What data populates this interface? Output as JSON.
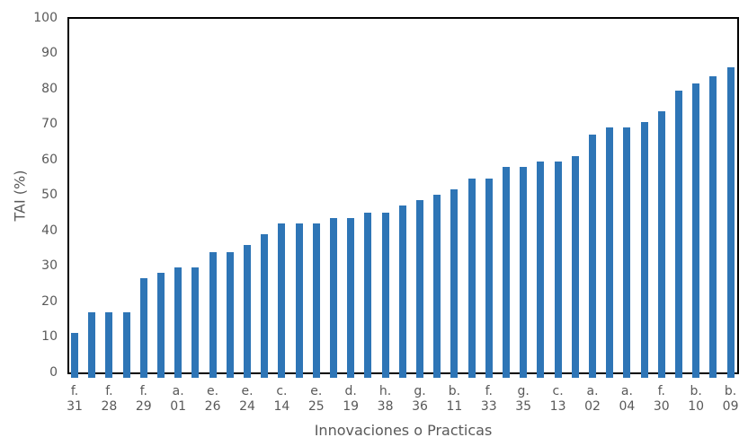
{
  "chart_data": {
    "type": "bar",
    "title": "",
    "xlabel": "Innovaciones o Practicas",
    "ylabel": "TAI (%)",
    "ylim": [
      0,
      100
    ],
    "ytick_step": 10,
    "yticks": [
      0,
      10,
      20,
      30,
      40,
      50,
      60,
      70,
      80,
      90,
      100
    ],
    "grid": false,
    "legend": false,
    "x_labels_every": 2,
    "bar_color": "#2E75B6",
    "axis_color": "#000000",
    "text_color": "#595959",
    "background": "#FFFFFF",
    "bars": [
      {
        "label": "f. 31",
        "value": 11
      },
      {
        "label": "",
        "value": 17
      },
      {
        "label": "f. 28",
        "value": 17
      },
      {
        "label": "",
        "value": 17
      },
      {
        "label": "f. 29",
        "value": 26.5
      },
      {
        "label": "",
        "value": 28
      },
      {
        "label": "a. 01",
        "value": 29.5
      },
      {
        "label": "",
        "value": 29.5
      },
      {
        "label": "e. 26",
        "value": 34
      },
      {
        "label": "",
        "value": 34
      },
      {
        "label": "e. 24",
        "value": 36
      },
      {
        "label": "",
        "value": 39
      },
      {
        "label": "c. 14",
        "value": 42
      },
      {
        "label": "",
        "value": 42
      },
      {
        "label": "e. 25",
        "value": 42
      },
      {
        "label": "",
        "value": 43.5
      },
      {
        "label": "d. 19",
        "value": 43.5
      },
      {
        "label": "",
        "value": 45
      },
      {
        "label": "h. 38",
        "value": 45
      },
      {
        "label": "",
        "value": 47
      },
      {
        "label": "g. 36",
        "value": 48.5
      },
      {
        "label": "",
        "value": 50
      },
      {
        "label": "b. 11",
        "value": 51.5
      },
      {
        "label": "",
        "value": 54.5
      },
      {
        "label": "f. 33",
        "value": 54.5
      },
      {
        "label": "",
        "value": 58
      },
      {
        "label": "g. 35",
        "value": 58
      },
      {
        "label": "",
        "value": 59.5
      },
      {
        "label": "c. 13",
        "value": 59.5
      },
      {
        "label": "",
        "value": 61
      },
      {
        "label": "a. 02",
        "value": 67
      },
      {
        "label": "",
        "value": 69
      },
      {
        "label": "a. 04",
        "value": 69
      },
      {
        "label": "",
        "value": 70.5
      },
      {
        "label": "f. 30",
        "value": 73.5
      },
      {
        "label": "",
        "value": 79.5
      },
      {
        "label": "b. 10",
        "value": 81.5
      },
      {
        "label": "",
        "value": 83.5
      },
      {
        "label": "b. 09",
        "value": 86
      }
    ]
  }
}
